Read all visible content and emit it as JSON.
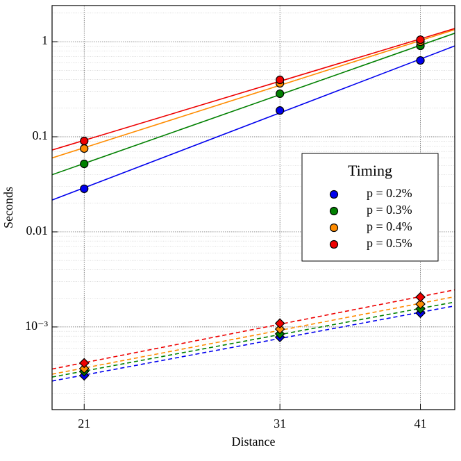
{
  "chart_data": {
    "type": "scatter",
    "xlabel": "Distance",
    "ylabel": "Seconds",
    "xscale": "log",
    "yscale": "log",
    "grid": true,
    "xlim": [
      19.7,
      43.9
    ],
    "xticks": [
      21,
      31,
      41
    ],
    "ylim": [
      0.000135,
      2.4
    ],
    "yticks": [
      {
        "value": 0.001,
        "label": "10⁻³"
      },
      0.01,
      0.1,
      1
    ],
    "x": [
      21,
      31,
      41
    ],
    "legend": {
      "title": "Timing",
      "position": "center right"
    },
    "series": [
      {
        "name": "p = 0.2%",
        "color": "#0000ee",
        "marker": "circle",
        "linestyle": "solid",
        "values": [
          0.0284,
          0.189,
          0.635
        ]
      },
      {
        "name": "p = 0.3%",
        "color": "#008000",
        "marker": "circle",
        "linestyle": "solid",
        "values": [
          0.0519,
          0.284,
          0.904
        ]
      },
      {
        "name": "p = 0.4%",
        "color": "#ff8c00",
        "marker": "circle",
        "linestyle": "solid",
        "values": [
          0.0752,
          0.365,
          1.0
        ]
      },
      {
        "name": "p = 0.5%",
        "color": "#ee0000",
        "marker": "circle",
        "linestyle": "solid",
        "values": [
          0.0904,
          0.397,
          1.05
        ]
      },
      {
        "color": "#0000ee",
        "marker": "diamond",
        "linestyle": "dashed",
        "values": [
          0.000308,
          0.00078,
          0.0014
        ]
      },
      {
        "color": "#008000",
        "marker": "diamond",
        "linestyle": "dashed",
        "values": [
          0.000341,
          0.000845,
          0.00155
        ]
      },
      {
        "color": "#ff8c00",
        "marker": "diamond",
        "linestyle": "dashed",
        "values": [
          0.000365,
          0.00095,
          0.00174
        ]
      },
      {
        "color": "#ee0000",
        "marker": "diamond",
        "linestyle": "dashed",
        "values": [
          0.000417,
          0.00109,
          0.00206
        ]
      }
    ]
  }
}
